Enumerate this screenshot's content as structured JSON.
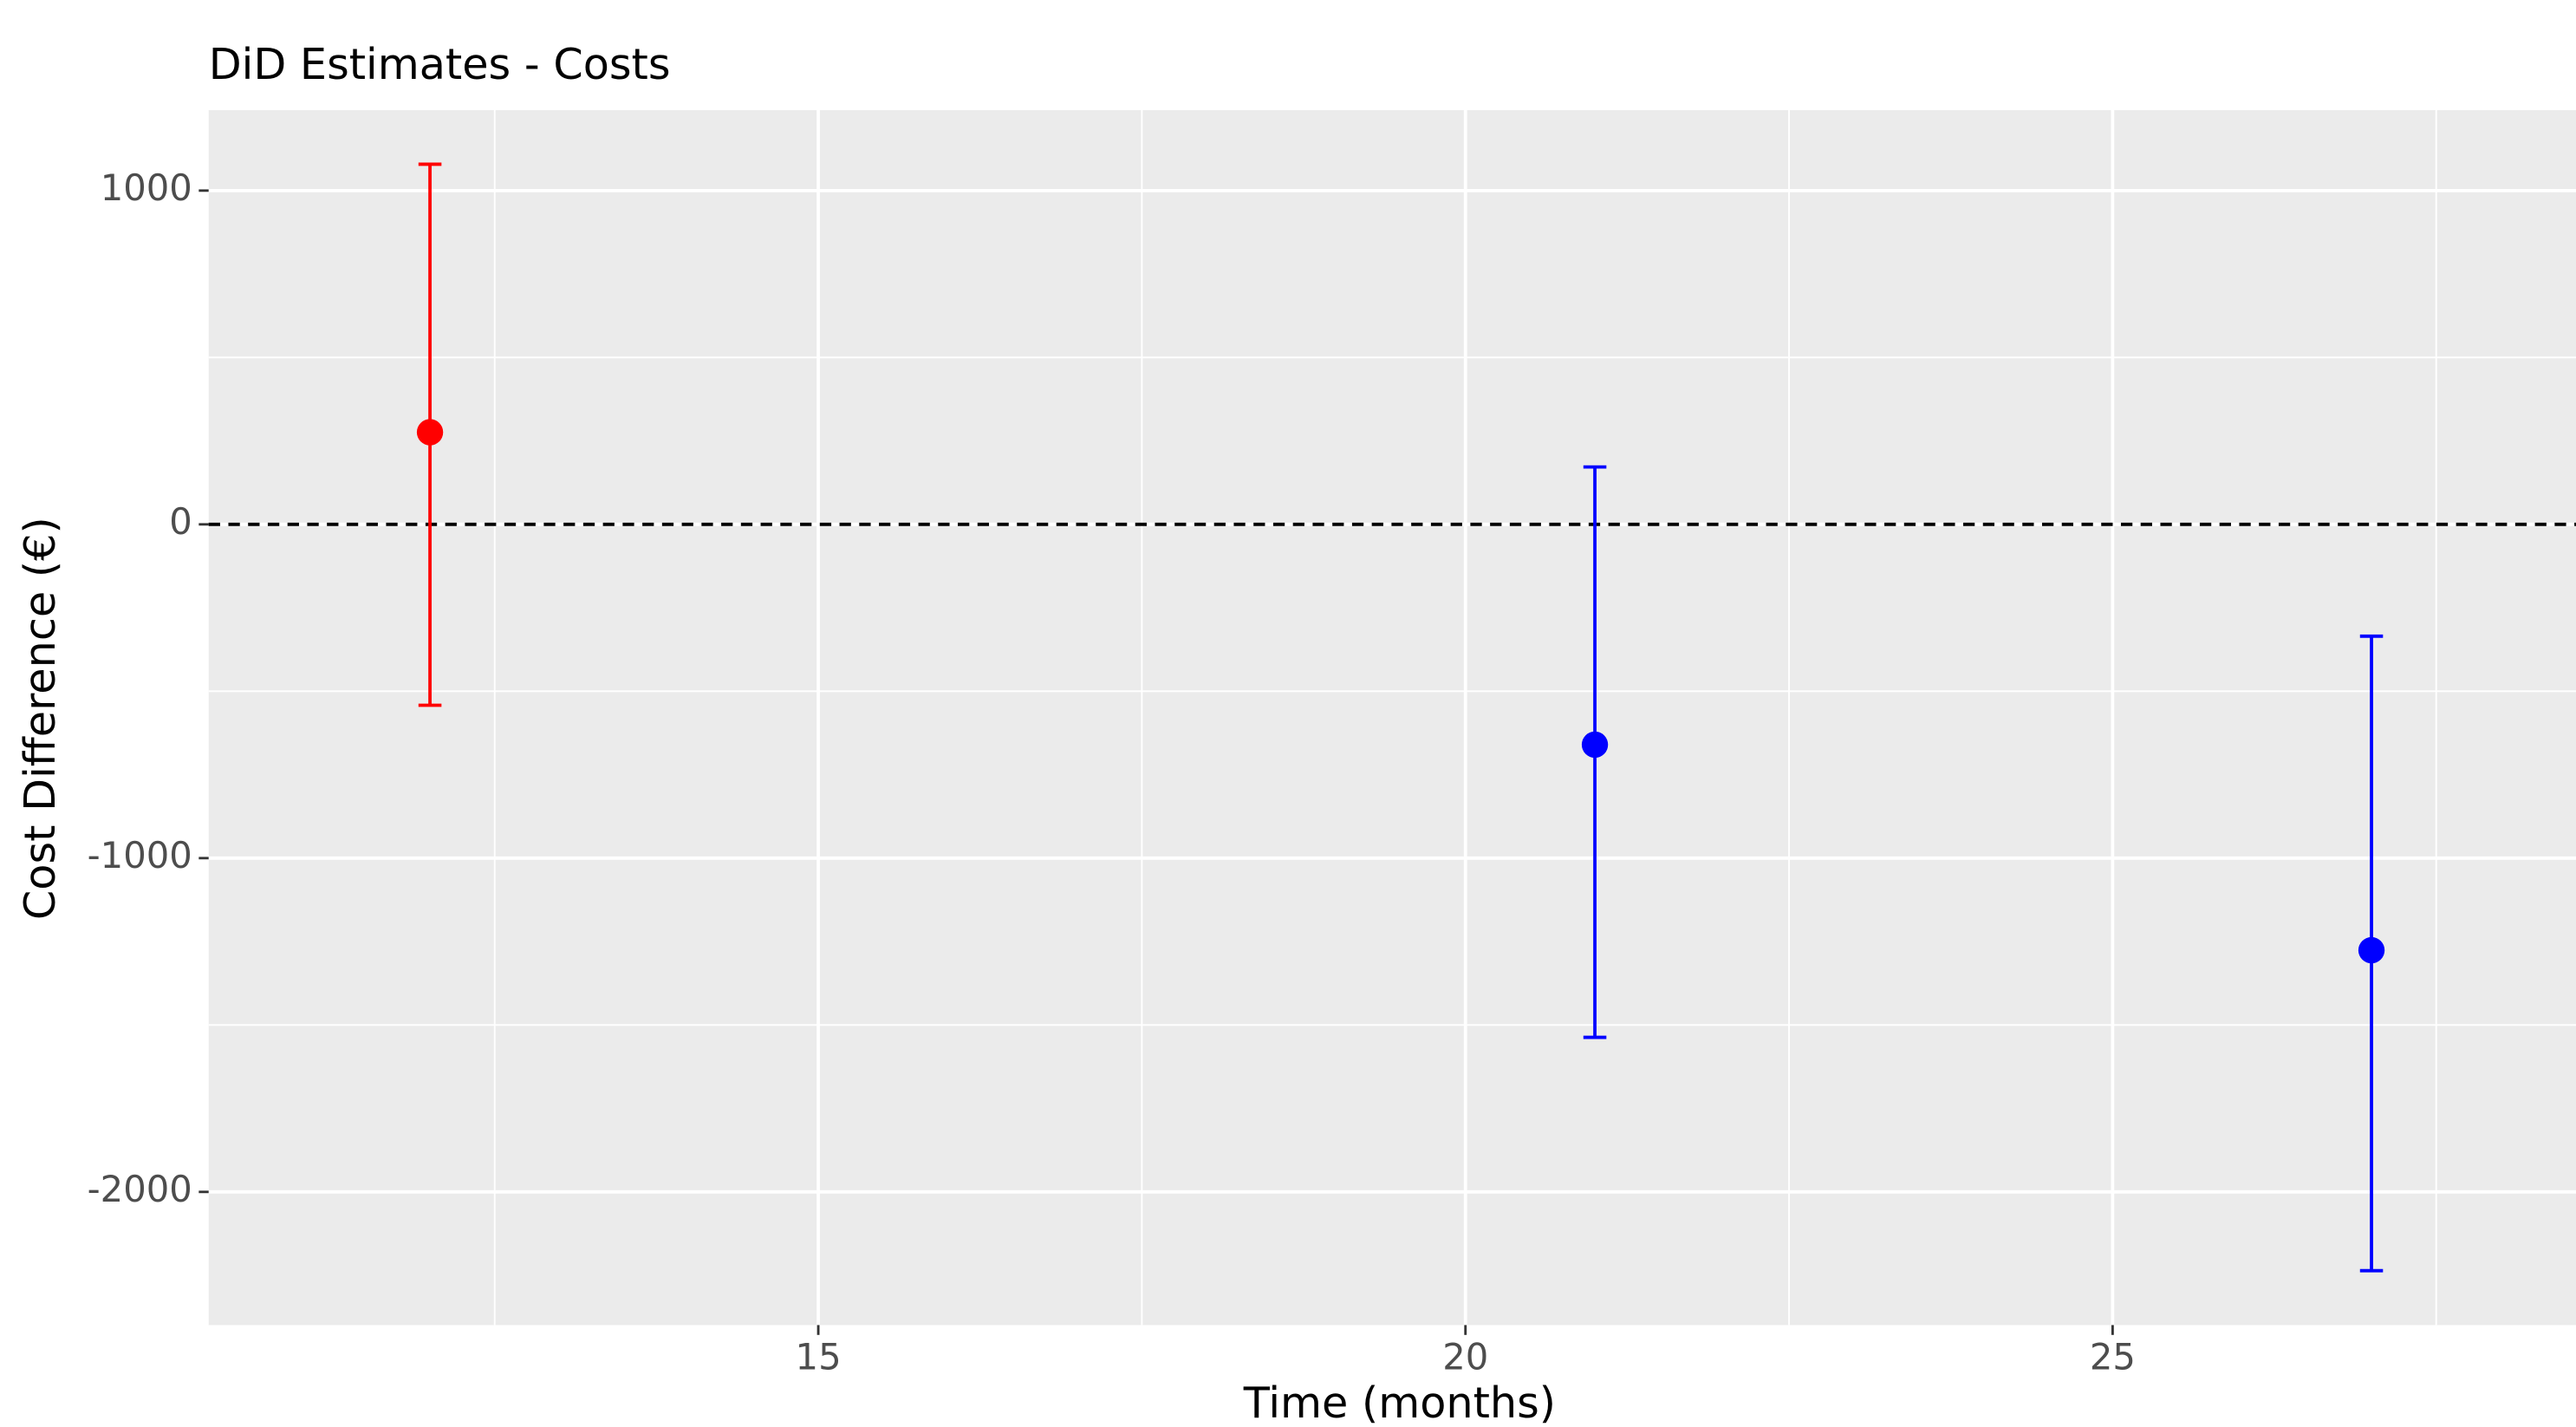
{
  "chart_data": {
    "type": "errorbar",
    "title": "DiD Estimates - Costs",
    "x_label": "Time (months)",
    "y_label": "Cost Difference (€)",
    "x": [
      12,
      21,
      27
    ],
    "values": [
      276,
      -660,
      -1276
    ],
    "lower": [
      -542,
      -1537,
      -2236
    ],
    "upper": [
      1079,
      172,
      -335
    ],
    "colors": [
      "#ff0000",
      "#0000ff",
      "#0000ff"
    ],
    "xlim": [
      10.29,
      28.58
    ],
    "xticks": [
      15,
      20,
      25
    ],
    "minor_xticks": [
      12.5,
      17.5,
      22.5,
      27.5
    ],
    "ylim": [
      -2399,
      1241
    ],
    "yticks": [
      -2000,
      -1000,
      0,
      1000
    ],
    "minor_yticks": [
      -1500,
      -500,
      500
    ],
    "hline": 0,
    "grid": true
  }
}
